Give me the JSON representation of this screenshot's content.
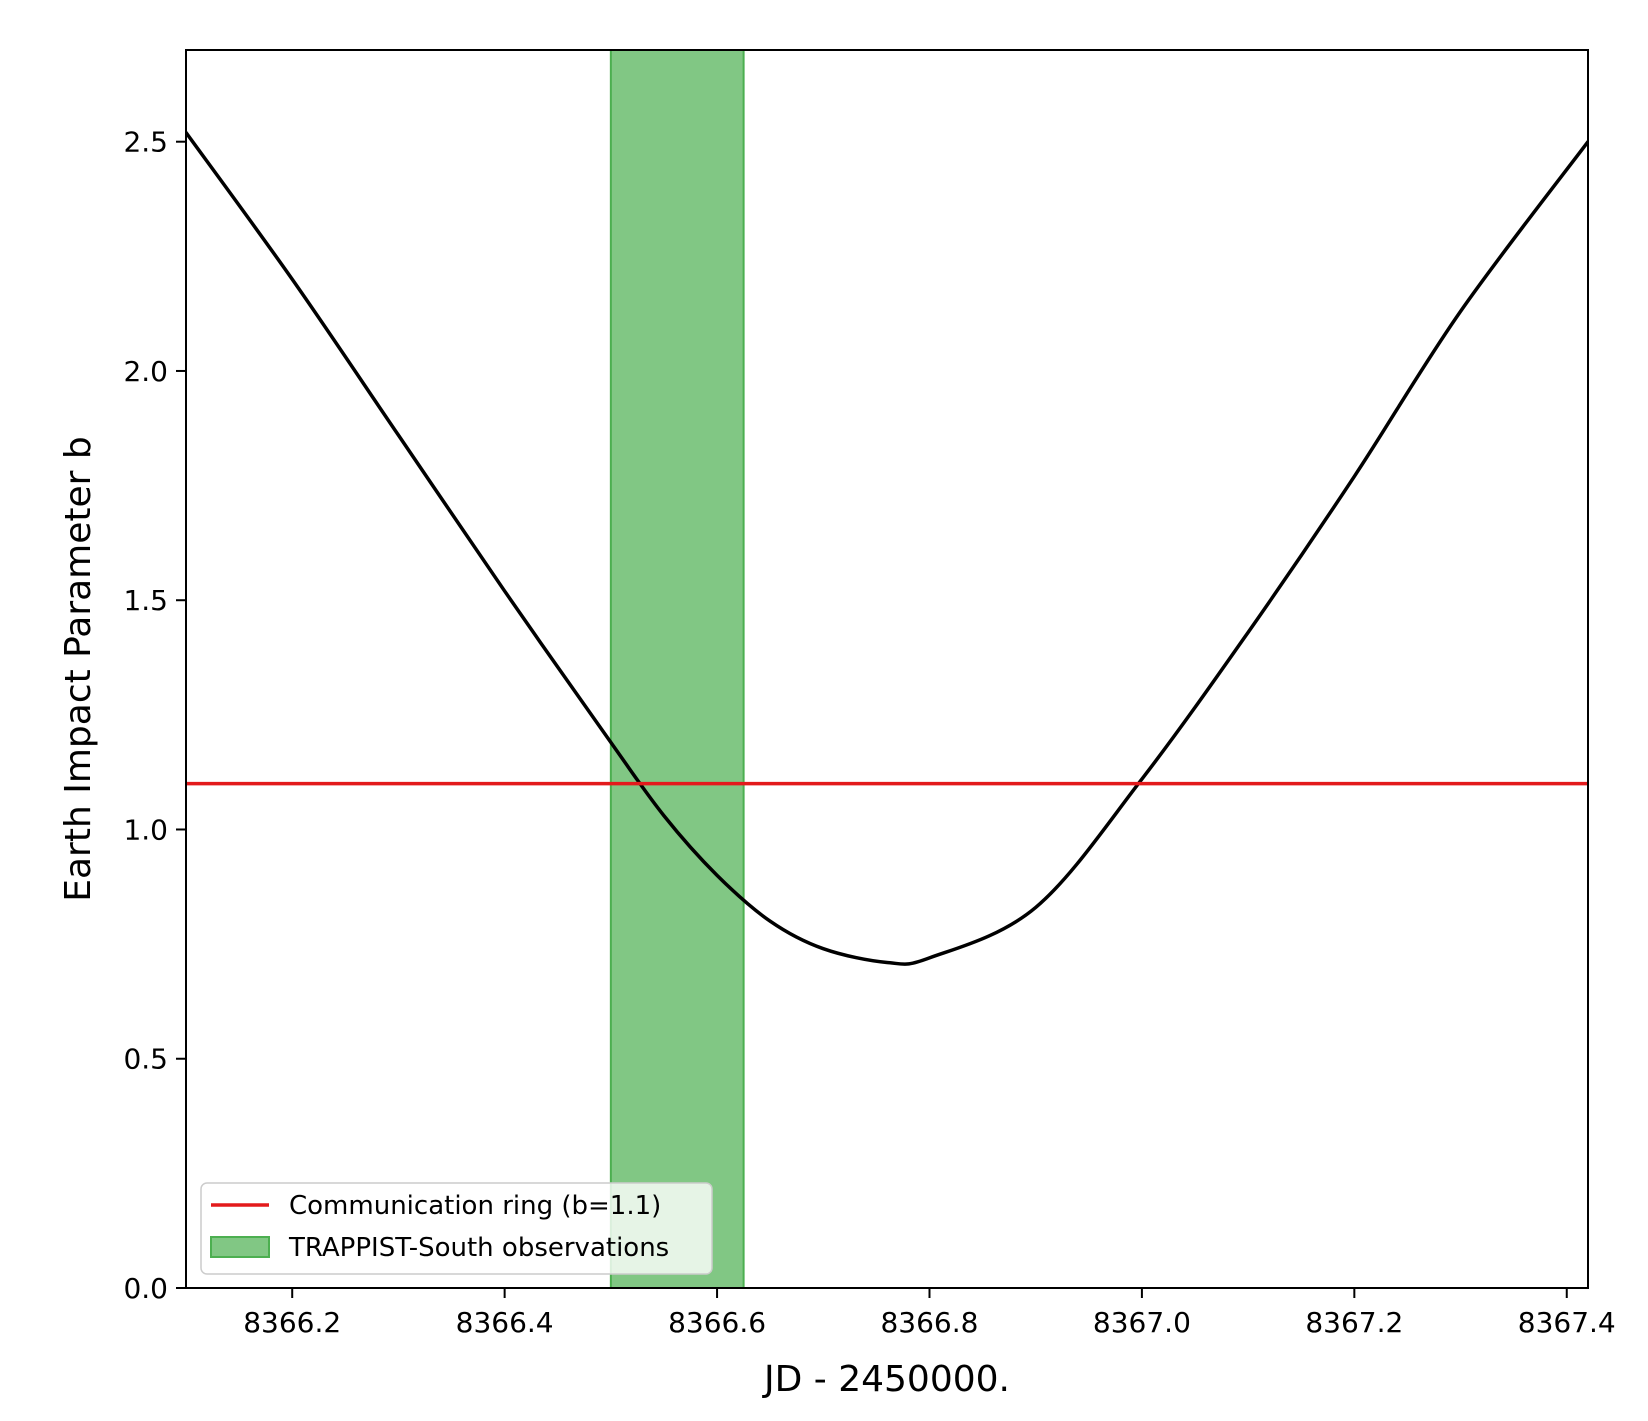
{
  "chart_data": {
    "type": "line",
    "title": "",
    "xlabel": "JD - 2450000.",
    "ylabel": "Earth Impact Parameter b",
    "xlim": [
      8366.1,
      8367.42
    ],
    "ylim": [
      0.0,
      2.7
    ],
    "x_ticks": [
      "8366.2",
      "8366.4",
      "8366.6",
      "8366.8",
      "8367.0",
      "8367.2",
      "8367.4"
    ],
    "x_tick_values": [
      8366.2,
      8366.4,
      8366.6,
      8366.8,
      8367.0,
      8367.2,
      8367.4
    ],
    "y_ticks": [
      "0.0",
      "0.5",
      "1.0",
      "1.5",
      "2.0",
      "2.5"
    ],
    "y_tick_values": [
      0.0,
      0.5,
      1.0,
      1.5,
      2.0,
      2.5
    ],
    "grid": false,
    "legend_position": "lower-left",
    "series": [
      {
        "kind": "line",
        "color": "#000000",
        "x": [
          8366.1,
          8366.2,
          8366.3,
          8366.4,
          8366.5,
          8366.55,
          8366.6,
          8366.65,
          8366.7,
          8366.76,
          8366.8,
          8366.9,
          8367.0,
          8367.1,
          8367.2,
          8367.3,
          8367.42
        ],
        "y": [
          2.52,
          2.2,
          1.86,
          1.52,
          1.19,
          1.03,
          0.9,
          0.8,
          0.74,
          0.71,
          0.72,
          0.83,
          1.11,
          1.43,
          1.77,
          2.13,
          2.5
        ]
      },
      {
        "kind": "hline",
        "name": "Communication ring (b=1.1)",
        "color": "#e31a1c",
        "y": 1.1
      },
      {
        "kind": "vspan",
        "name": "TRAPPIST-South observations",
        "color": "#4caf50",
        "x_start": 8366.5,
        "x_end": 8366.625
      }
    ]
  }
}
